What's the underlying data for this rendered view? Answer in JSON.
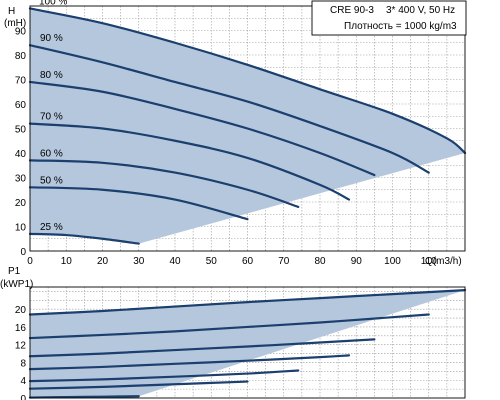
{
  "chart_data": [
    {
      "type": "line",
      "title": "CRE 90-3",
      "subtitle_lines": [
        "3* 400 V, 50 Hz",
        "Плотность = 1000 kg/m3"
      ],
      "ylabel": "H",
      "yunit": "(mH)",
      "xlabel": "Q(m3/h)",
      "xlim": [
        0,
        120
      ],
      "ylim": [
        0,
        100
      ],
      "xticks": [
        0,
        10,
        20,
        30,
        40,
        50,
        60,
        70,
        80,
        90,
        100,
        110
      ],
      "yticks": [
        0,
        10,
        20,
        30,
        40,
        50,
        60,
        70,
        80,
        90
      ],
      "grid": true,
      "shaded_operating_area": true,
      "series": [
        {
          "name": "100 %",
          "x": [
            0,
            20,
            40,
            60,
            80,
            100,
            115,
            120
          ],
          "y": [
            99,
            93,
            85,
            76,
            66,
            56,
            46,
            40
          ]
        },
        {
          "name": "90 %",
          "x": [
            0,
            20,
            40,
            60,
            80,
            100,
            110
          ],
          "y": [
            84,
            77,
            69,
            61,
            51,
            40,
            32
          ]
        },
        {
          "name": "80 %",
          "x": [
            0,
            20,
            40,
            60,
            80,
            95
          ],
          "y": [
            69,
            65,
            58,
            50,
            40,
            31
          ]
        },
        {
          "name": "70 %",
          "x": [
            0,
            20,
            40,
            60,
            80,
            88
          ],
          "y": [
            52,
            50,
            45,
            38,
            27,
            21
          ]
        },
        {
          "name": "60 %",
          "x": [
            0,
            20,
            40,
            60,
            74
          ],
          "y": [
            37,
            36,
            32,
            25,
            18
          ]
        },
        {
          "name": "50 %",
          "x": [
            0,
            20,
            40,
            60
          ],
          "y": [
            26,
            25,
            21,
            13
          ]
        },
        {
          "name": "25 %",
          "x": [
            0,
            10,
            20,
            30
          ],
          "y": [
            7,
            6.5,
            5,
            3
          ]
        }
      ]
    },
    {
      "type": "line",
      "ylabel": "P1",
      "yunit": "(kWP1)",
      "xlim": [
        0,
        120
      ],
      "ylim": [
        0,
        25
      ],
      "yticks": [
        0,
        4,
        8,
        12,
        16,
        20
      ],
      "grid": true,
      "shaded_operating_area": true,
      "series": [
        {
          "name": "100 %",
          "x": [
            0,
            20,
            40,
            60,
            80,
            100,
            120
          ],
          "y": [
            18.8,
            19.6,
            20.6,
            21.6,
            22.5,
            23.4,
            24.3
          ]
        },
        {
          "name": "90 %",
          "x": [
            0,
            20,
            40,
            60,
            80,
            100,
            110
          ],
          "y": [
            13.5,
            14.2,
            15,
            16,
            17,
            18.2,
            18.8
          ]
        },
        {
          "name": "80 %",
          "x": [
            0,
            20,
            40,
            60,
            80,
            95
          ],
          "y": [
            9.4,
            10,
            10.8,
            11.6,
            12.5,
            13.2
          ]
        },
        {
          "name": "70 %",
          "x": [
            0,
            20,
            40,
            60,
            80,
            88
          ],
          "y": [
            6.5,
            7,
            7.7,
            8.4,
            9.2,
            9.6
          ]
        },
        {
          "name": "60 %",
          "x": [
            0,
            20,
            40,
            60,
            74
          ],
          "y": [
            3.8,
            4.2,
            4.8,
            5.5,
            6.2
          ]
        },
        {
          "name": "50 %",
          "x": [
            0,
            20,
            40,
            60
          ],
          "y": [
            2.1,
            2.5,
            3.1,
            3.7
          ]
        },
        {
          "name": "25 %",
          "x": [
            0,
            10,
            20,
            30
          ],
          "y": [
            0.1,
            0.2,
            0.3,
            0.4
          ]
        }
      ]
    }
  ]
}
